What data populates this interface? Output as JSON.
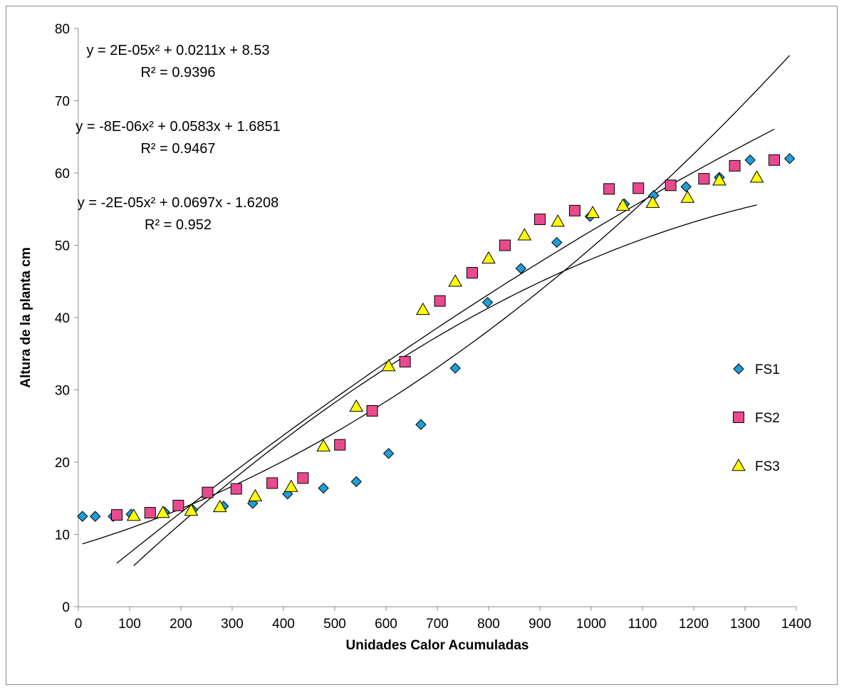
{
  "chart_data": {
    "type": "scatter",
    "title": "",
    "xlabel": "Unidades Calor Acumuladas",
    "ylabel": "Altura de la planta cm",
    "xlim": [
      0,
      1400
    ],
    "ylim": [
      0,
      80
    ],
    "x_ticks": [
      0,
      100,
      200,
      300,
      400,
      500,
      600,
      700,
      800,
      900,
      1000,
      1100,
      1200,
      1300,
      1400
    ],
    "y_ticks": [
      0,
      10,
      20,
      30,
      40,
      50,
      60,
      70,
      80
    ],
    "grid": false,
    "legend_position": "right",
    "series": [
      {
        "name": "FS1",
        "marker": "diamond",
        "color": "#1E9FD8",
        "points": [
          [
            8,
            12.5
          ],
          [
            33,
            12.5
          ],
          [
            68,
            12.5
          ],
          [
            103,
            12.8
          ],
          [
            168,
            13.1
          ],
          [
            223,
            13.4
          ],
          [
            283,
            13.9
          ],
          [
            340,
            14.3
          ],
          [
            408,
            15.6
          ],
          [
            478,
            16.4
          ],
          [
            542,
            17.3
          ],
          [
            605,
            21.2
          ],
          [
            668,
            25.2
          ],
          [
            735,
            33.0
          ],
          [
            798,
            42.1
          ],
          [
            863,
            46.8
          ],
          [
            933,
            50.4
          ],
          [
            998,
            54.0
          ],
          [
            1065,
            55.7
          ],
          [
            1122,
            56.9
          ],
          [
            1185,
            58.1
          ],
          [
            1250,
            59.4
          ],
          [
            1310,
            61.8
          ],
          [
            1387,
            62.0
          ]
        ]
      },
      {
        "name": "FS2",
        "marker": "square",
        "color": "#E94A8E",
        "points": [
          [
            75,
            12.7
          ],
          [
            140,
            13.0
          ],
          [
            195,
            14.0
          ],
          [
            252,
            15.8
          ],
          [
            308,
            16.3
          ],
          [
            378,
            17.1
          ],
          [
            438,
            17.8
          ],
          [
            510,
            22.4
          ],
          [
            573,
            27.1
          ],
          [
            637,
            33.9
          ],
          [
            705,
            42.3
          ],
          [
            768,
            46.2
          ],
          [
            832,
            50.0
          ],
          [
            900,
            53.6
          ],
          [
            968,
            54.8
          ],
          [
            1035,
            57.8
          ],
          [
            1092,
            57.9
          ],
          [
            1155,
            58.3
          ],
          [
            1220,
            59.2
          ],
          [
            1280,
            61.0
          ],
          [
            1357,
            61.8
          ]
        ]
      },
      {
        "name": "FS3",
        "marker": "triangle",
        "color": "#FFFF00",
        "points": [
          [
            108,
            12.6
          ],
          [
            165,
            13.0
          ],
          [
            220,
            13.3
          ],
          [
            276,
            13.8
          ],
          [
            345,
            15.3
          ],
          [
            415,
            16.6
          ],
          [
            478,
            22.2
          ],
          [
            542,
            27.7
          ],
          [
            605,
            33.3
          ],
          [
            672,
            41.1
          ],
          [
            735,
            45.0
          ],
          [
            800,
            48.2
          ],
          [
            870,
            51.4
          ],
          [
            935,
            53.3
          ],
          [
            1003,
            54.5
          ],
          [
            1062,
            55.5
          ],
          [
            1120,
            55.9
          ],
          [
            1188,
            56.6
          ],
          [
            1250,
            59.0
          ],
          [
            1323,
            59.4
          ]
        ]
      }
    ],
    "trendlines": [
      {
        "equation": "y = 2E-05x² + 0.0211x + 8.53",
        "r2": "R² = 0.9396",
        "a": 2e-05,
        "b": 0.0211,
        "c": 8.53,
        "x_range": [
          8,
          1387
        ]
      },
      {
        "equation": "y = -8E-06x² + 0.0583x + 1.6851",
        "r2": "R² = 0.9467",
        "a": -8e-06,
        "b": 0.0583,
        "c": 1.6851,
        "x_range": [
          75,
          1357
        ]
      },
      {
        "equation": "y = -2E-05x² + 0.0697x - 1.6208",
        "r2": "R² = 0.952",
        "a": -2e-05,
        "b": 0.0697,
        "c": -1.6208,
        "x_range": [
          108,
          1323
        ]
      }
    ]
  }
}
